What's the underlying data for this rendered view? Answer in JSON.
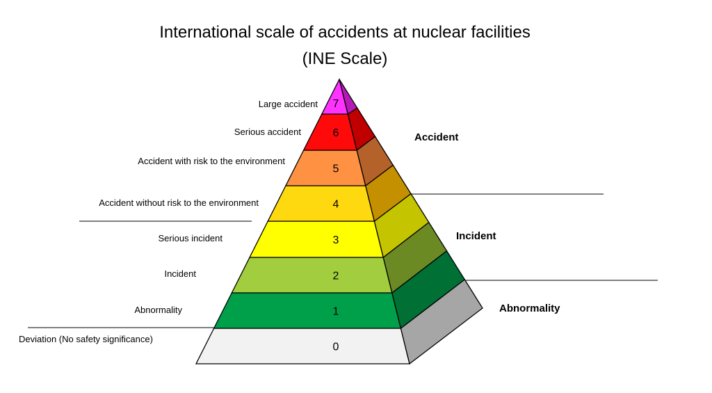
{
  "title": {
    "line1": "International scale of accidents at nuclear facilities",
    "line2": "(INE Scale)"
  },
  "levels": [
    {
      "number": "0",
      "label": "Deviation (No safety significance)",
      "front_color": "#f2f2f2",
      "side_color": "#a6a6a6"
    },
    {
      "number": "1",
      "label": "Abnormality",
      "front_color": "#00a04a",
      "side_color": "#007035"
    },
    {
      "number": "2",
      "label": "Incident",
      "front_color": "#a2cd3e",
      "side_color": "#6b8a24"
    },
    {
      "number": "3",
      "label": "Serious incident",
      "front_color": "#ffff00",
      "side_color": "#c4c400"
    },
    {
      "number": "4",
      "label": "Accident without risk to the environment",
      "front_color": "#ffd910",
      "side_color": "#c49000"
    },
    {
      "number": "5",
      "label": "Accident with risk to the environment",
      "front_color": "#ff9142",
      "side_color": "#b5622a"
    },
    {
      "number": "6",
      "label": "Serious accident",
      "front_color": "#ff0a0a",
      "side_color": "#c00000"
    },
    {
      "number": "7",
      "label": "Large accident",
      "front_color": "#ff33ff",
      "side_color": "#b61ab6"
    }
  ],
  "categories": {
    "accident": "Accident",
    "incident": "Incident",
    "abnormality": "Abnormality"
  }
}
